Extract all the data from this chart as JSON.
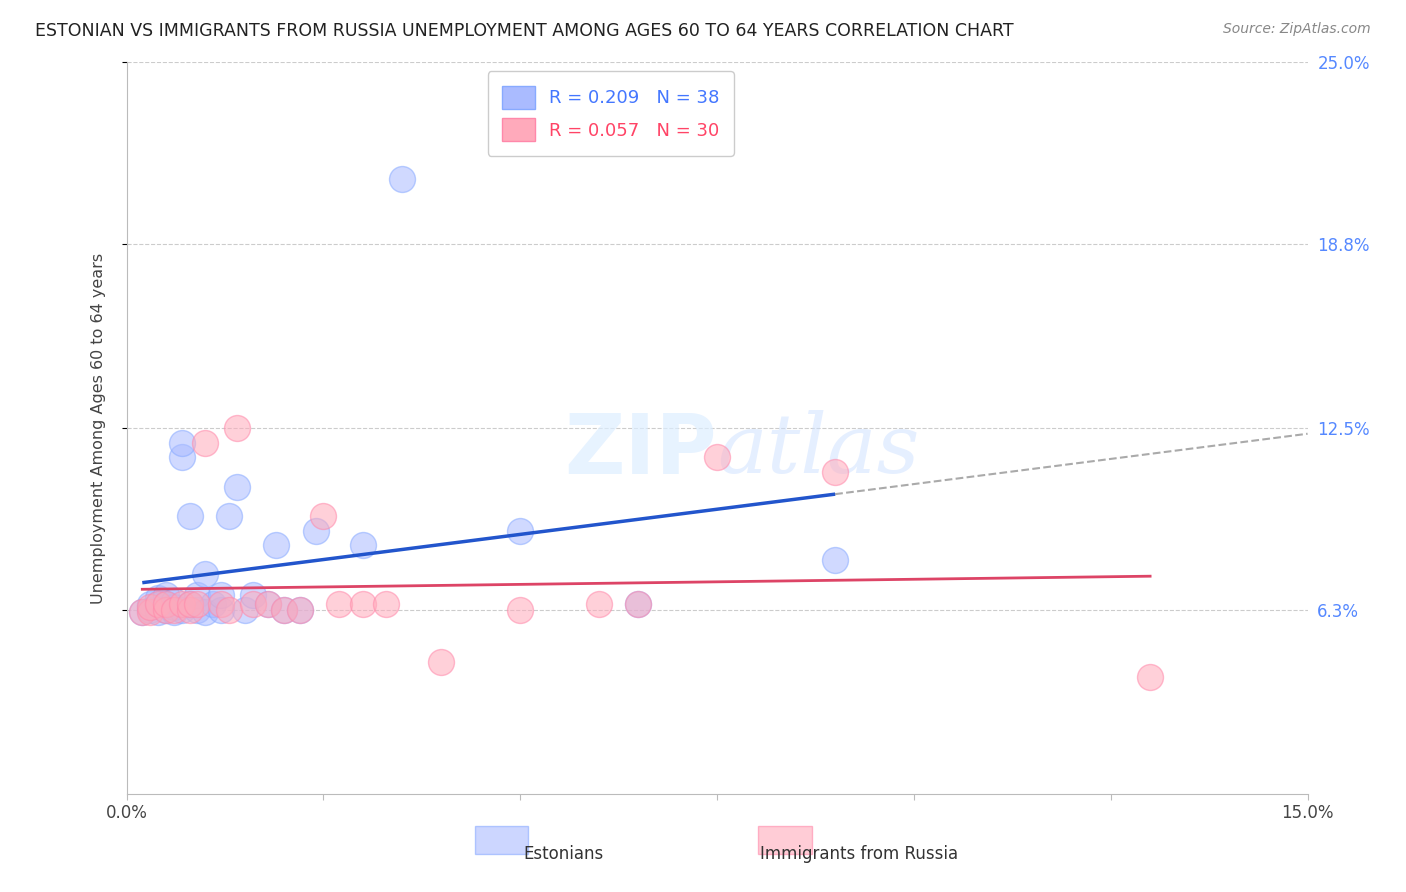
{
  "title": "ESTONIAN VS IMMIGRANTS FROM RUSSIA UNEMPLOYMENT AMONG AGES 60 TO 64 YEARS CORRELATION CHART",
  "source": "Source: ZipAtlas.com",
  "ylabel": "Unemployment Among Ages 60 to 64 years",
  "xlim": [
    0.0,
    0.15
  ],
  "ylim": [
    0.0,
    0.25
  ],
  "ytick_labels": [
    "6.3%",
    "12.5%",
    "18.8%",
    "25.0%"
  ],
  "ytick_positions": [
    0.063,
    0.125,
    0.188,
    0.25
  ],
  "blue_color": "#aabbff",
  "pink_color": "#ffaabb",
  "blue_line_color": "#2255cc",
  "pink_line_color": "#dd4466",
  "dashed_line_color": "#aaaaaa",
  "watermark": "ZIPatlas",
  "estonians_x": [
    0.002,
    0.003,
    0.003,
    0.004,
    0.004,
    0.004,
    0.005,
    0.005,
    0.005,
    0.006,
    0.006,
    0.006,
    0.007,
    0.007,
    0.007,
    0.008,
    0.008,
    0.009,
    0.009,
    0.01,
    0.01,
    0.011,
    0.012,
    0.012,
    0.013,
    0.014,
    0.015,
    0.016,
    0.018,
    0.019,
    0.02,
    0.022,
    0.024,
    0.03,
    0.035,
    0.05,
    0.065,
    0.09
  ],
  "estonians_y": [
    0.062,
    0.063,
    0.065,
    0.062,
    0.065,
    0.067,
    0.063,
    0.065,
    0.068,
    0.062,
    0.064,
    0.066,
    0.063,
    0.115,
    0.12,
    0.065,
    0.095,
    0.063,
    0.068,
    0.062,
    0.075,
    0.065,
    0.063,
    0.068,
    0.095,
    0.105,
    0.063,
    0.068,
    0.065,
    0.085,
    0.063,
    0.063,
    0.09,
    0.085,
    0.21,
    0.09,
    0.065,
    0.08
  ],
  "russia_x": [
    0.002,
    0.003,
    0.003,
    0.004,
    0.005,
    0.005,
    0.006,
    0.007,
    0.008,
    0.008,
    0.009,
    0.01,
    0.012,
    0.013,
    0.014,
    0.016,
    0.018,
    0.02,
    0.022,
    0.025,
    0.027,
    0.03,
    0.033,
    0.04,
    0.05,
    0.06,
    0.065,
    0.075,
    0.09,
    0.13
  ],
  "russia_y": [
    0.062,
    0.062,
    0.064,
    0.065,
    0.063,
    0.065,
    0.063,
    0.065,
    0.063,
    0.065,
    0.065,
    0.12,
    0.065,
    0.063,
    0.125,
    0.065,
    0.065,
    0.063,
    0.063,
    0.095,
    0.065,
    0.065,
    0.065,
    0.045,
    0.063,
    0.065,
    0.065,
    0.115,
    0.11,
    0.04
  ],
  "blue_line_x": [
    0.002,
    0.09
  ],
  "blue_line_y_start": 0.065,
  "blue_line_y_end": 0.12,
  "pink_line_x": [
    0.002,
    0.13
  ],
  "pink_line_y_start": 0.063,
  "pink_line_y_end": 0.088
}
